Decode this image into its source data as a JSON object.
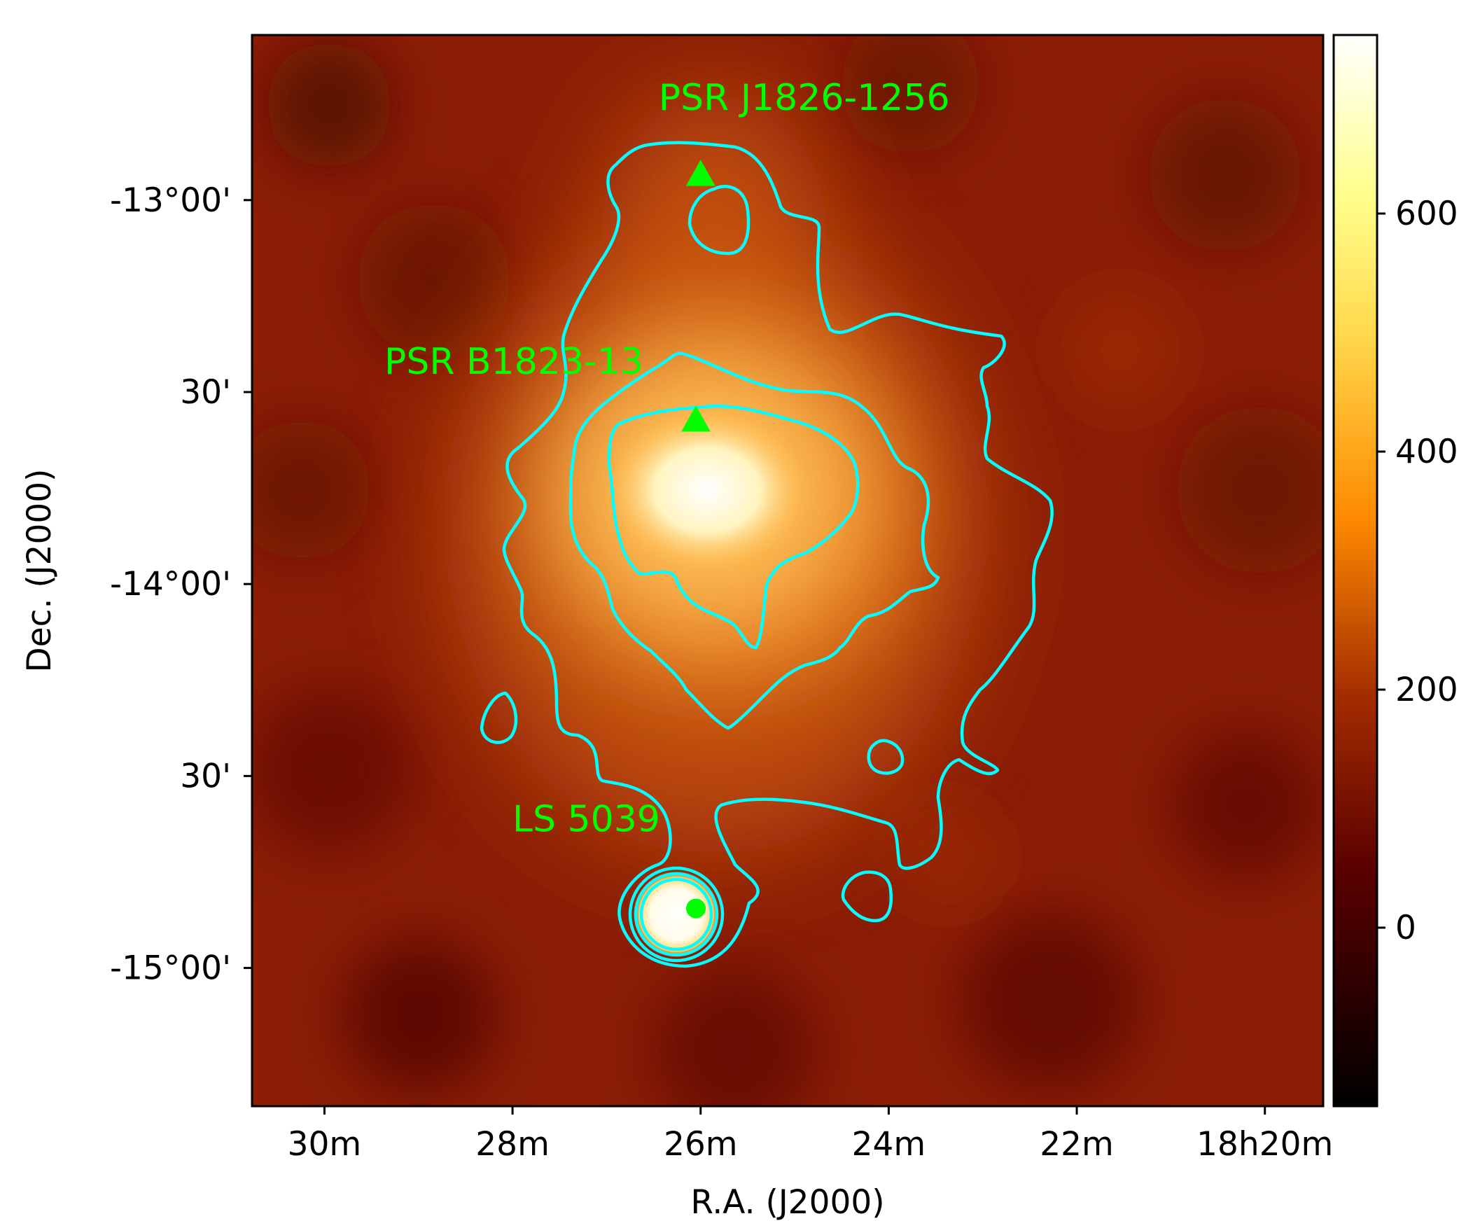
{
  "chart_data": {
    "type": "heatmap",
    "title": "",
    "xlabel": "R.A. (J2000)",
    "ylabel": "Dec. (J2000)",
    "x_ticks": [
      {
        "label": "30m",
        "ra_min": 30
      },
      {
        "label": "28m",
        "ra_min": 28
      },
      {
        "label": "26m",
        "ra_min": 26
      },
      {
        "label": "24m",
        "ra_min": 24
      },
      {
        "label": "22m",
        "ra_min": 22
      },
      {
        "label": "18h20m",
        "ra_min": 20
      }
    ],
    "y_ticks": [
      {
        "label": "-13°00'",
        "dec": -13.0
      },
      {
        "label": "30'",
        "dec": -13.5
      },
      {
        "label": "-14°00'",
        "dec": -14.0
      },
      {
        "label": "30'",
        "dec": -14.5
      },
      {
        "label": "-15°00'",
        "dec": -15.0
      }
    ],
    "xlim_ra_min": [
      30.77,
      19.38
    ],
    "ylim_dec": [
      -15.36,
      -12.57
    ],
    "colorbar": {
      "range": [
        -150,
        750
      ],
      "ticks": [
        0,
        200,
        400,
        600
      ],
      "tick_labels": [
        "0",
        "200",
        "400",
        "600"
      ],
      "colormap": "afmhot"
    },
    "sources": [
      {
        "name": "PSR J1826-1256",
        "ra_min": 26.0,
        "dec": -12.935,
        "marker": "triangle",
        "color": "#00ff00"
      },
      {
        "name": "PSR B1823-13",
        "ra_min": 26.05,
        "dec": -13.575,
        "marker": "triangle",
        "color": "#00ff00"
      },
      {
        "name": "LS 5039",
        "ra_min": 26.05,
        "dec": -14.845,
        "marker": "circle",
        "color": "#00ff00"
      }
    ],
    "contour_color": "#00ffff",
    "grid": false
  }
}
